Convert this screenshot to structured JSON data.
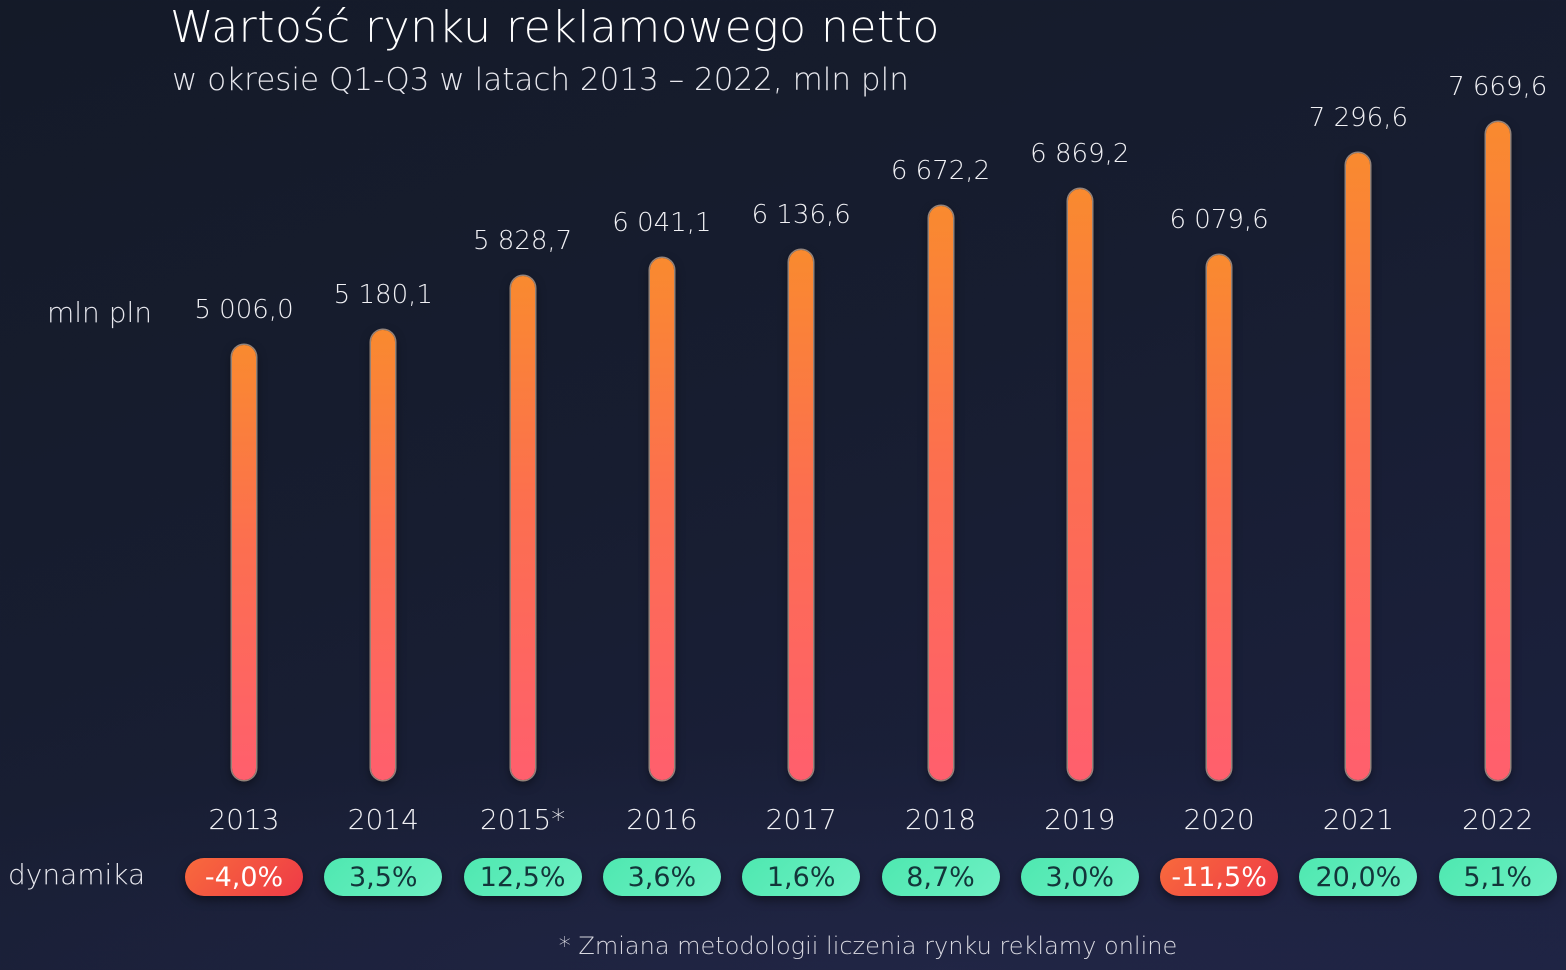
{
  "header": {
    "title": "Wartość rynku reklamowego netto",
    "subtitle": "w okresie Q1-Q3 w latach 2013 – 2022, mln pln"
  },
  "labels": {
    "unit": "mln pln",
    "dynamics": "dynamika",
    "footnote": "* Zmiana metodologii liczenia rynku reklamy online"
  },
  "colors": {
    "bar_top": "#f98a2f",
    "bar_bottom": "#ff5f6d",
    "positive_pill": "#5cecbb",
    "negative_pill": "#f2523f",
    "background": "#171d30"
  },
  "chart_data": {
    "type": "bar",
    "title": "Wartość rynku reklamowego netto",
    "subtitle": "w okresie Q1-Q3 w latach 2013 – 2022, mln pln",
    "xlabel": "",
    "ylabel": "mln pln",
    "grid": false,
    "categories": [
      "2013",
      "2014",
      "2015*",
      "2016",
      "2017",
      "2018",
      "2019",
      "2020",
      "2021",
      "2022"
    ],
    "values": [
      5006.0,
      5180.1,
      5828.7,
      6041.1,
      6136.6,
      6672.2,
      6869.2,
      6079.6,
      7296.6,
      7669.6
    ],
    "value_labels": [
      "5 006,0",
      "5 180,1",
      "5 828,7",
      "6 041,1",
      "6 136,6",
      "6 672,2",
      "6 869,2",
      "6 079,6",
      "7 296,6",
      "7 669,6"
    ],
    "series": [
      {
        "name": "mln pln",
        "values": [
          5006.0,
          5180.1,
          5828.7,
          6041.1,
          6136.6,
          6672.2,
          6869.2,
          6079.6,
          7296.6,
          7669.6
        ]
      },
      {
        "name": "dynamika",
        "values": [
          -4.0,
          3.5,
          12.5,
          3.6,
          1.6,
          8.7,
          3.0,
          -11.5,
          20.0,
          5.1
        ]
      }
    ],
    "dynamics_labels": [
      "-4,0%",
      "3,5%",
      "12,5%",
      "3,6%",
      "1,6%",
      "8,7%",
      "3,0%",
      "-11,5%",
      "20,0%",
      "5,1%"
    ],
    "annotations": [
      "* Zmiana metodologii liczenia rynku reklamy online"
    ]
  }
}
